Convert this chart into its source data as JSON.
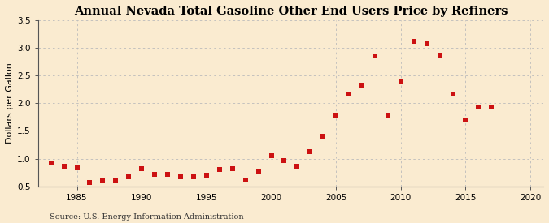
{
  "title": "Annual Nevada Total Gasoline Other End Users Price by Refiners",
  "ylabel": "Dollars per Gallon",
  "source": "Source: U.S. Energy Information Administration",
  "x_data": [
    1983,
    1984,
    1985,
    1986,
    1987,
    1988,
    1989,
    1990,
    1991,
    1992,
    1993,
    1994,
    1995,
    1996,
    1997,
    1998,
    1999,
    2000,
    2001,
    2002,
    2003,
    2004,
    2005,
    2006,
    2007,
    2008,
    2009,
    2010,
    2011,
    2012,
    2013,
    2014,
    2015,
    2016,
    2017
  ],
  "y_data": [
    0.92,
    0.86,
    0.84,
    0.57,
    0.6,
    0.6,
    0.67,
    0.82,
    0.72,
    0.72,
    0.67,
    0.67,
    0.7,
    0.81,
    0.82,
    0.62,
    0.77,
    1.05,
    0.97,
    0.87,
    1.13,
    1.41,
    1.79,
    2.17,
    2.32,
    2.86,
    1.79,
    2.4,
    3.12,
    3.07,
    2.87,
    2.16,
    1.7,
    1.93,
    1.93
  ],
  "xlim": [
    1982,
    2021
  ],
  "ylim": [
    0.5,
    3.5
  ],
  "xticks": [
    1985,
    1990,
    1995,
    2000,
    2005,
    2010,
    2015,
    2020
  ],
  "yticks": [
    0.5,
    1.0,
    1.5,
    2.0,
    2.5,
    3.0,
    3.5
  ],
  "marker_color": "#cc1111",
  "marker_size": 4,
  "bg_color": "#faebd0",
  "plot_bg_color": "#faebd0",
  "grid_color": "#bbbbbb",
  "title_fontsize": 10.5,
  "label_fontsize": 8,
  "tick_fontsize": 7.5,
  "source_fontsize": 7
}
